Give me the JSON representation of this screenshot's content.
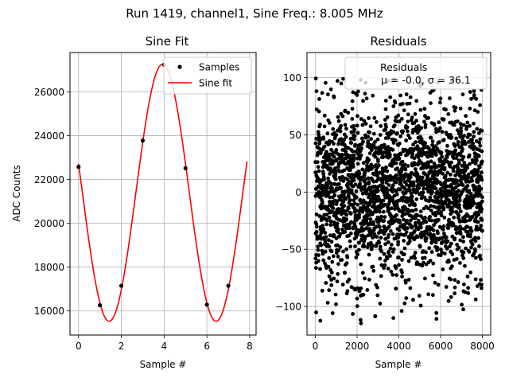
{
  "figure": {
    "suptitle": "Run 1419, channel1, Sine Freq.: 8.005 MHz"
  },
  "chart_data": [
    {
      "type": "scatter",
      "title": "Sine Fit",
      "xlabel": "Sample #",
      "ylabel": "ADC Counts",
      "xlim": [
        -0.4,
        8.3
      ],
      "ylim": [
        14900,
        27800
      ],
      "xticks": [
        0,
        2,
        4,
        6,
        8
      ],
      "yticks": [
        16000,
        18000,
        20000,
        22000,
        24000,
        26000
      ],
      "grid": true,
      "legend_position": "upper right",
      "colors": {
        "samples": "#000000",
        "fit": "#ff0000"
      },
      "series": [
        {
          "name": "Samples",
          "kind": "points",
          "x": [
            0,
            1,
            2,
            3,
            4,
            5,
            6,
            7
          ],
          "y": [
            22580,
            16260,
            17150,
            23780,
            27240,
            22520,
            16290,
            17150
          ]
        },
        {
          "name": "Sine fit",
          "kind": "line",
          "model": {
            "offset": 21400,
            "amplitude": 5870,
            "period_samples": 5,
            "x_at_max": 3.93
          },
          "x_range": [
            0,
            7.875
          ]
        }
      ]
    },
    {
      "type": "scatter",
      "title": "Residuals",
      "xlabel": "Sample #",
      "ylabel": "",
      "xlim": [
        -400,
        8400
      ],
      "ylim": [
        -125,
        122
      ],
      "xticks": [
        0,
        2000,
        4000,
        6000,
        8000
      ],
      "yticks": [
        -100,
        -50,
        0,
        50,
        100
      ],
      "grid": true,
      "legend_position": "upper right",
      "colors": {
        "points": "#000000"
      },
      "series": [
        {
          "name": "Residuals",
          "kind": "points",
          "n_points": 8000,
          "mean": -0.0,
          "std": 36.1,
          "min": -115,
          "max": 100
        }
      ],
      "legend_text": {
        "title": "Residuals",
        "stats_line": "μ = -0.0, σ = 36.1"
      }
    }
  ]
}
